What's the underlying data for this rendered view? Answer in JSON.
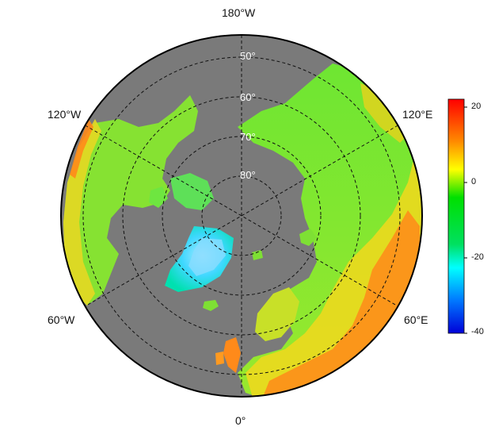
{
  "map": {
    "projection": "north-polar-stereographic",
    "ocean_color": "#7a7a7a",
    "rim_color": "#000000",
    "longitude_labels": {
      "top": "180°W",
      "upper_left": "120°W",
      "upper_right": "120°E",
      "lower_left": "60°W",
      "lower_right": "60°E",
      "bottom": "0°"
    },
    "latitude_labels": [
      "50°",
      "60°",
      "70°",
      "80°"
    ]
  },
  "colorbar": {
    "min": -40,
    "max": 22,
    "ticks": [
      "20",
      "0",
      "-20",
      "-40"
    ],
    "colors": [
      "#ff0000",
      "#ff8000",
      "#ffff00",
      "#00e000",
      "#00ffff",
      "#0080ff",
      "#0000ff"
    ]
  }
}
